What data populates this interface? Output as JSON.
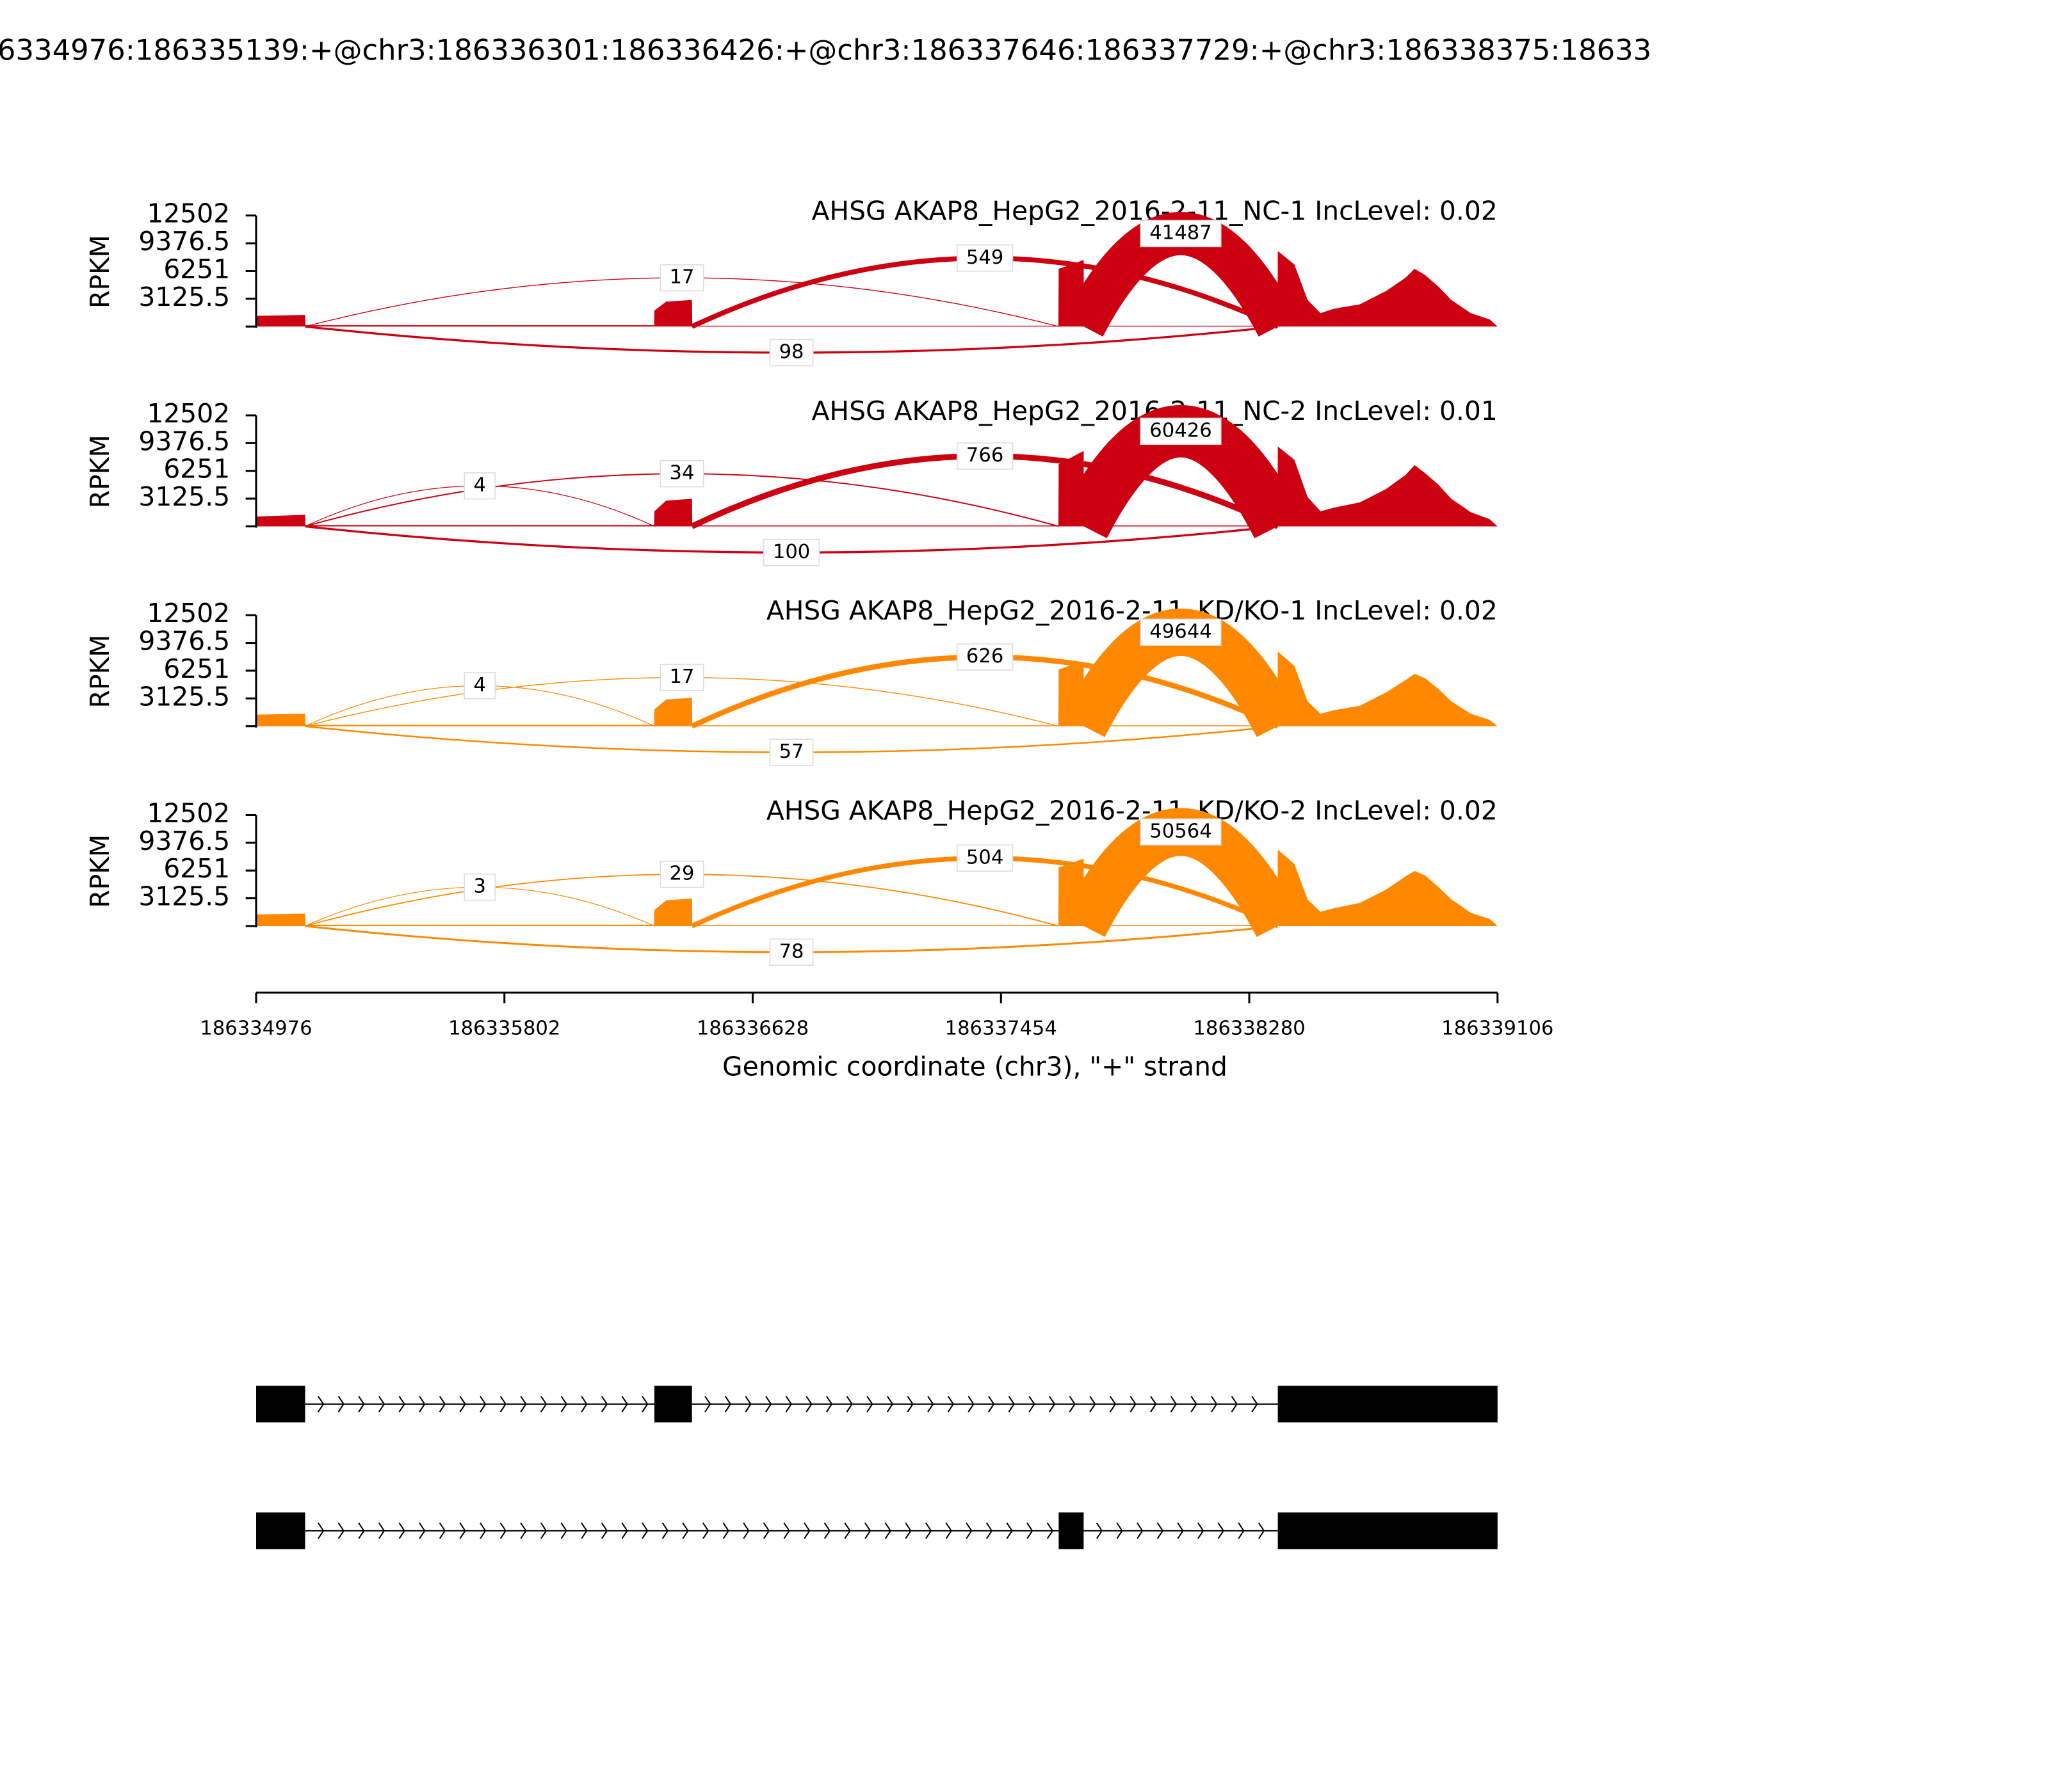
{
  "chart_data": {
    "type": "sashimi",
    "title": "6334976:186335139:+@chr3:186336301:186336426:+@chr3:186337646:186337729:+@chr3:186338375:18633",
    "xlabel": "Genomic coordinate (chr3), \"+\" strand",
    "ylabel": "RPKM",
    "xlim": [
      186334976,
      186339106
    ],
    "xticks": [
      186334976,
      186335802,
      186336628,
      186337454,
      186338280,
      186339106
    ],
    "ylim": [
      0,
      12502
    ],
    "yticks": [
      3125.5,
      6251,
      9376.5,
      12502
    ],
    "coverage_x": [
      186334976,
      186335139,
      186335140,
      186336300,
      186336301,
      186336340,
      186336426,
      186336427,
      186337645,
      186337646,
      186337690,
      186337729,
      186337730,
      186338374,
      186338375,
      186338430,
      186338474,
      186338517,
      186338561,
      186338648,
      186338735,
      186338800,
      186338830,
      186338865,
      186338909,
      186338952,
      186339017,
      186339080,
      186339106
    ],
    "panels": [
      {
        "title": "AHSG AKAP8_HepG2_2016-2-11_NC-1 IncLevel: 0.02",
        "color": "#cc0011",
        "coverage": [
          1200,
          1300,
          150,
          150,
          1800,
          2800,
          3000,
          100,
          100,
          6500,
          7000,
          7500,
          100,
          100,
          8500,
          7000,
          3000,
          1500,
          2000,
          2500,
          4000,
          5500,
          6500,
          5800,
          4500,
          3000,
          1500,
          800,
          0
        ],
        "junctions": [
          {
            "start": 186335139,
            "end": 186337646,
            "count": 17,
            "side": "above"
          },
          {
            "start": 186336426,
            "end": 186338375,
            "count": 549,
            "side": "above"
          },
          {
            "start": 186337729,
            "end": 186338375,
            "count": 41487,
            "side": "above"
          },
          {
            "start": 186335139,
            "end": 186338375,
            "count": 98,
            "side": "below"
          }
        ]
      },
      {
        "title": "AHSG AKAP8_HepG2_2016-2-11_NC-2 IncLevel: 0.01",
        "color": "#cc0011",
        "coverage": [
          1100,
          1300,
          150,
          150,
          1700,
          2900,
          3100,
          100,
          100,
          7000,
          7800,
          8500,
          100,
          100,
          9000,
          7500,
          3300,
          1700,
          2100,
          2700,
          4200,
          5800,
          6900,
          6000,
          4700,
          3100,
          1600,
          800,
          0
        ],
        "junctions": [
          {
            "start": 186335139,
            "end": 186336301,
            "count": 4,
            "side": "above"
          },
          {
            "start": 186335139,
            "end": 186337646,
            "count": 34,
            "side": "above"
          },
          {
            "start": 186336426,
            "end": 186338375,
            "count": 766,
            "side": "above"
          },
          {
            "start": 186337729,
            "end": 186338375,
            "count": 60426,
            "side": "above"
          },
          {
            "start": 186335139,
            "end": 186338375,
            "count": 100,
            "side": "below"
          }
        ]
      },
      {
        "title": "AHSG AKAP8_HepG2_2016-2-11_KD/KO-1 IncLevel: 0.02",
        "color": "#ff8800",
        "coverage": [
          1300,
          1400,
          150,
          150,
          1900,
          3000,
          3200,
          100,
          100,
          6400,
          6900,
          7300,
          100,
          100,
          8400,
          6800,
          2800,
          1400,
          1800,
          2300,
          3800,
          5200,
          5900,
          5400,
          4200,
          2800,
          1400,
          700,
          0
        ],
        "junctions": [
          {
            "start": 186335139,
            "end": 186336301,
            "count": 4,
            "side": "above"
          },
          {
            "start": 186335139,
            "end": 186337646,
            "count": 17,
            "side": "above"
          },
          {
            "start": 186336426,
            "end": 186338375,
            "count": 626,
            "side": "above"
          },
          {
            "start": 186337729,
            "end": 186338375,
            "count": 49644,
            "side": "above"
          },
          {
            "start": 186335139,
            "end": 186338375,
            "count": 57,
            "side": "below"
          }
        ]
      },
      {
        "title": "AHSG AKAP8_HepG2_2016-2-11_KD/KO-2 IncLevel: 0.02",
        "color": "#ff8800",
        "coverage": [
          1300,
          1400,
          150,
          150,
          1800,
          2900,
          3100,
          100,
          100,
          6600,
          7100,
          7600,
          100,
          100,
          8600,
          7000,
          3000,
          1600,
          2000,
          2600,
          4100,
          5600,
          6200,
          5700,
          4400,
          3000,
          1500,
          800,
          0
        ],
        "junctions": [
          {
            "start": 186335139,
            "end": 186336301,
            "count": 3,
            "side": "above"
          },
          {
            "start": 186335139,
            "end": 186337646,
            "count": 29,
            "side": "above"
          },
          {
            "start": 186336426,
            "end": 186338375,
            "count": 504,
            "side": "above"
          },
          {
            "start": 186337729,
            "end": 186338375,
            "count": 50564,
            "side": "above"
          },
          {
            "start": 186335139,
            "end": 186338375,
            "count": 78,
            "side": "below"
          }
        ]
      }
    ],
    "transcripts": [
      {
        "exons": [
          [
            186334976,
            186335139
          ],
          [
            186336301,
            186336426
          ],
          [
            186338375,
            186339106
          ]
        ]
      },
      {
        "exons": [
          [
            186334976,
            186335139
          ],
          [
            186337646,
            186337729
          ],
          [
            186338375,
            186339106
          ]
        ]
      }
    ]
  }
}
